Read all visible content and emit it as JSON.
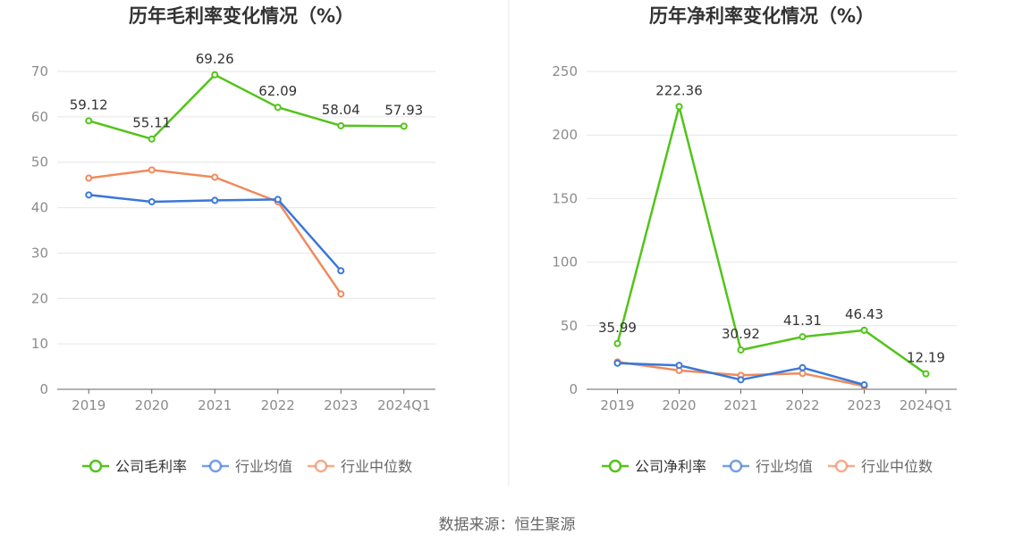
{
  "source": "数据来源：恒生聚源",
  "chart_data": [
    {
      "type": "line",
      "title": "历年毛利率变化情况（%）",
      "categories": [
        "2019",
        "2020",
        "2021",
        "2022",
        "2023",
        "2024Q1"
      ],
      "ylim": [
        0,
        70
      ],
      "yticks": [
        0,
        10,
        20,
        30,
        40,
        50,
        60,
        70
      ],
      "grid": true,
      "legend_position": "bottom",
      "series": [
        {
          "name": "公司毛利率",
          "color": "#52c41a",
          "values": [
            59.12,
            55.11,
            69.26,
            62.09,
            58.04,
            57.93
          ],
          "labels": [
            "59.12",
            "55.11",
            "69.26",
            "62.09",
            "58.04",
            "57.93"
          ]
        },
        {
          "name": "行业均值",
          "color": "#3a78d8",
          "values": [
            42.8,
            41.3,
            41.6,
            41.8,
            26.1,
            null
          ]
        },
        {
          "name": "行业中位数",
          "color": "#f08a5d",
          "values": [
            46.5,
            48.3,
            46.7,
            41.3,
            21.0,
            null
          ]
        }
      ]
    },
    {
      "type": "line",
      "title": "历年净利率变化情况（%）",
      "categories": [
        "2019",
        "2020",
        "2021",
        "2022",
        "2023",
        "2024Q1"
      ],
      "ylim": [
        0,
        250
      ],
      "yticks": [
        0,
        50,
        100,
        150,
        200,
        250
      ],
      "grid": true,
      "legend_position": "bottom",
      "series": [
        {
          "name": "公司净利率",
          "color": "#52c41a",
          "values": [
            35.99,
            222.36,
            30.92,
            41.31,
            46.43,
            12.19
          ],
          "labels": [
            "35.99",
            "222.36",
            "30.92",
            "41.31",
            "46.43",
            "12.19"
          ]
        },
        {
          "name": "行业均值",
          "color": "#3a78d8",
          "values": [
            20.5,
            18.8,
            7.5,
            17.0,
            3.5,
            null
          ]
        },
        {
          "name": "行业中位数",
          "color": "#f08a5d",
          "values": [
            21.5,
            14.8,
            11.0,
            12.5,
            2.5,
            null
          ]
        }
      ]
    }
  ]
}
